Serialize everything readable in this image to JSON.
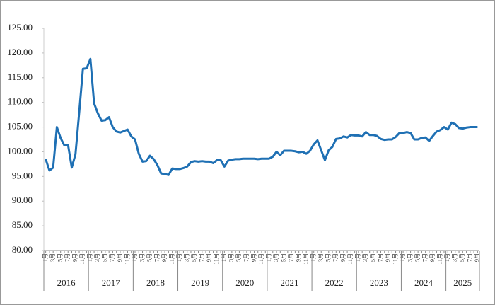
{
  "chart_data": {
    "type": "line",
    "categories": [
      "1月",
      null,
      "3月",
      null,
      "5月",
      null,
      "7月",
      null,
      "9月",
      null,
      "11月",
      null,
      "1月",
      null,
      "3月",
      null,
      "5月",
      null,
      "7月",
      null,
      "9月",
      null,
      "11月",
      null,
      "1月",
      null,
      "3月",
      null,
      "5月",
      null,
      "7月",
      null,
      "9月",
      null,
      "11月",
      null,
      "1月",
      null,
      "3月",
      null,
      "5月",
      null,
      "7月",
      null,
      "9月",
      null,
      "11月",
      null,
      "1月",
      null,
      "3月",
      null,
      "5月",
      null,
      "7月",
      null,
      "9月",
      null,
      "11月",
      null,
      "1月",
      null,
      "3月",
      null,
      "5月",
      null,
      "7月",
      null,
      "9月",
      null,
      "11月",
      null,
      "1月",
      null,
      "3月",
      null,
      "5月",
      null,
      "7月",
      null,
      "9月",
      null,
      "11月",
      null,
      "1月",
      null,
      "3月",
      null,
      "5月",
      null,
      "7月",
      null,
      "9月",
      null,
      "11月",
      null,
      "1月",
      null,
      "3月",
      null,
      "5月",
      null,
      "7月",
      null,
      "9月",
      null,
      "11月",
      null,
      "1月",
      null,
      "3月",
      null,
      "5月",
      null,
      "7月",
      null,
      "9月"
    ],
    "year_groups": [
      {
        "label": "2016",
        "span": 12
      },
      {
        "label": "2017",
        "span": 12
      },
      {
        "label": "2018",
        "span": 12
      },
      {
        "label": "2019",
        "span": 12
      },
      {
        "label": "2020",
        "span": 12
      },
      {
        "label": "2021",
        "span": 12
      },
      {
        "label": "2022",
        "span": 12
      },
      {
        "label": "2023",
        "span": 12
      },
      {
        "label": "2024",
        "span": 12
      },
      {
        "label": "2025",
        "span": 9
      }
    ],
    "values": [
      98.5,
      96.2,
      96.8,
      105.0,
      102.8,
      101.3,
      101.4,
      96.8,
      99.5,
      108.0,
      116.8,
      116.9,
      118.8,
      109.8,
      107.8,
      106.3,
      106.4,
      107.0,
      105.0,
      104.1,
      103.9,
      104.2,
      104.5,
      103.1,
      102.5,
      99.6,
      98.0,
      98.1,
      99.2,
      98.5,
      97.3,
      95.6,
      95.5,
      95.3,
      96.6,
      96.5,
      96.5,
      96.7,
      97.0,
      97.9,
      98.1,
      98.0,
      98.1,
      98.0,
      98.0,
      97.7,
      98.3,
      98.3,
      97.0,
      98.2,
      98.4,
      98.5,
      98.5,
      98.6,
      98.6,
      98.6,
      98.6,
      98.5,
      98.6,
      98.6,
      98.6,
      99.0,
      100.0,
      99.3,
      100.2,
      100.2,
      100.2,
      100.1,
      99.9,
      100.0,
      99.6,
      100.2,
      101.5,
      102.3,
      100.3,
      98.3,
      100.3,
      101.0,
      102.6,
      102.7,
      103.1,
      102.9,
      103.4,
      103.3,
      103.3,
      103.1,
      104.0,
      103.4,
      103.4,
      103.2,
      102.6,
      102.4,
      102.5,
      102.5,
      103.0,
      103.8,
      103.8,
      104.0,
      103.8,
      102.5,
      102.5,
      102.8,
      102.9,
      102.2,
      103.2,
      104.1,
      104.4,
      105.0,
      104.5,
      105.9,
      105.6,
      104.8,
      104.7,
      104.9,
      105.0,
      105.0,
      105.0
    ],
    "color": "#1f70b4",
    "ylim": [
      80,
      125
    ],
    "yticks": [
      {
        "value": 80,
        "label": "80.00"
      },
      {
        "value": 85,
        "label": "85.00"
      },
      {
        "value": 90,
        "label": "90.00"
      },
      {
        "value": 95,
        "label": "95.00"
      },
      {
        "value": 100,
        "label": "100.00"
      },
      {
        "value": 105,
        "label": "105.00"
      },
      {
        "value": 110,
        "label": "110.00"
      },
      {
        "value": 115,
        "label": "115.00"
      },
      {
        "value": 120,
        "label": "120.00"
      },
      {
        "value": 125,
        "label": "125.00"
      }
    ]
  }
}
